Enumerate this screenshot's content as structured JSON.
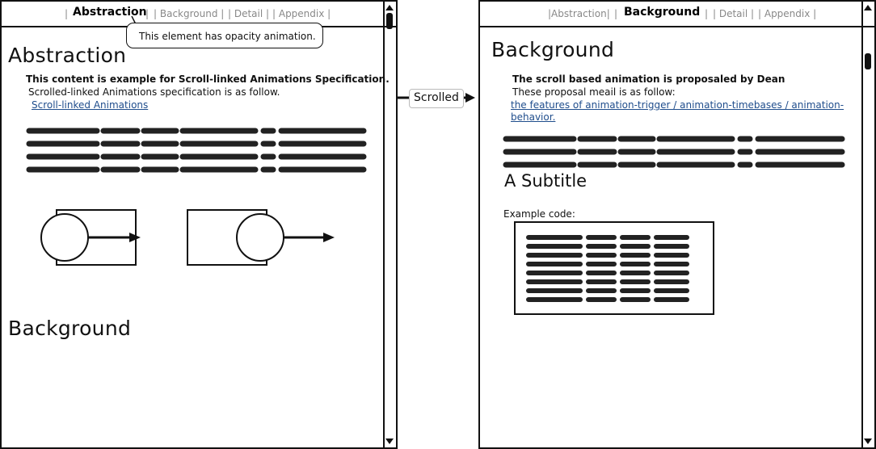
{
  "left_panel": {
    "tabs": [
      "| Abstraction |",
      "| Background |",
      "| Detail |",
      "| Appendix |"
    ],
    "active_tab": "Abstraction",
    "tooltip": "This element has opacity animation.",
    "title": "Abstraction",
    "bold_line": "This content is example for Scroll-linked Animations Specification.",
    "text_line": "Scrolled-linked Animations specification is as follow.",
    "link": "Scroll-linked Animations",
    "next_heading": "Background"
  },
  "arrow_label": "Scrolled",
  "right_panel": {
    "tabs": [
      "|Abstraction|",
      "|",
      "Background",
      "|",
      "| Detail |",
      "| Appendix |"
    ],
    "active_tab": "Background",
    "title": "Background",
    "bold_line": "The scroll based animation is proposaled by Dean",
    "text_line": "These proposal meail is as follow:",
    "link_line1": "the features of animation-trigger / animation-timebases / animation-",
    "link_line2": "behavior.",
    "subtitle": "A Subtitle",
    "code_label": "Example code:"
  },
  "colors": {
    "link": "#1f4d8c",
    "ink": "#111111",
    "tab_inactive": "#888888"
  }
}
